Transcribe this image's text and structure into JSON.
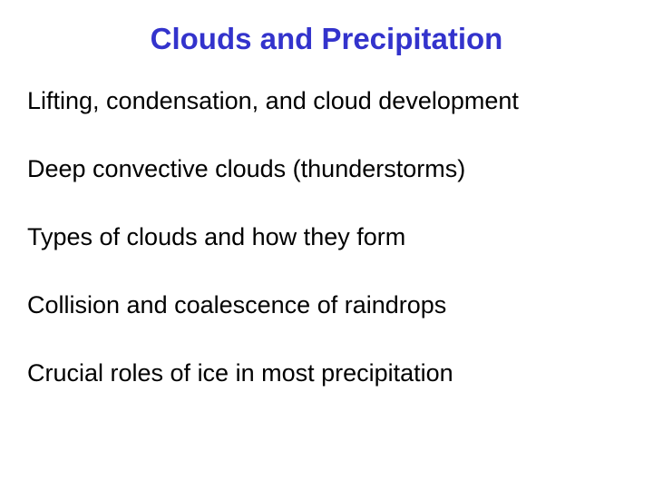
{
  "slide": {
    "title": "Clouds and Precipitation",
    "title_color": "#3333cc",
    "title_fontsize": 33,
    "title_fontweight": "bold",
    "background_color": "#ffffff",
    "body_color": "#000000",
    "body_fontsize": 27,
    "font_family": "Comic Sans MS",
    "items": [
      "Lifting, condensation, and cloud development",
      "Deep convective clouds (thunderstorms)",
      "Types of clouds and how they form",
      "Collision and coalescence of raindrops",
      "Crucial roles of ice in most precipitation"
    ]
  }
}
